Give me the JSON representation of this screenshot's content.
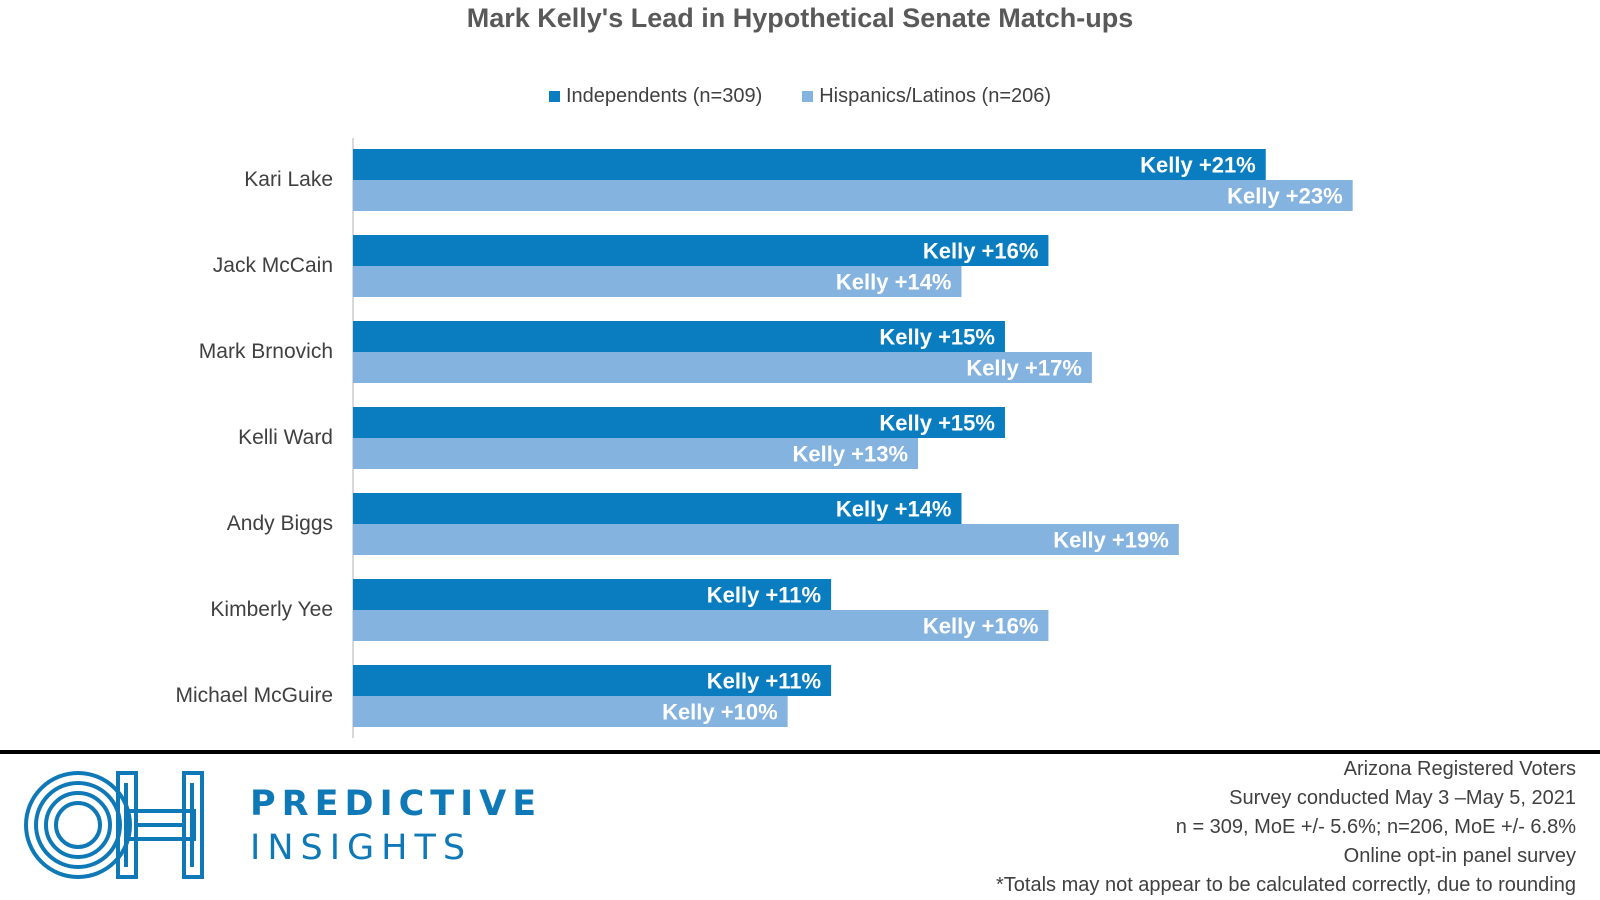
{
  "chart_data": {
    "type": "bar",
    "orientation": "horizontal",
    "title": "Mark Kelly's Lead in Hypothetical Senate Match-ups",
    "categories": [
      "Kari Lake",
      "Jack McCain",
      "Mark Brnovich",
      "Kelli Ward",
      "Andy Biggs",
      "Kimberly Yee",
      "Michael McGuire"
    ],
    "series": [
      {
        "name": "Independents (n=309)",
        "color": "#0a7dc1",
        "values": [
          21,
          16,
          15,
          15,
          14,
          11,
          11
        ],
        "labels": [
          "Kelly +21%",
          "Kelly +16%",
          "Kelly +15%",
          "Kelly +15%",
          "Kelly +14%",
          "Kelly +11%",
          "Kelly +11%"
        ]
      },
      {
        "name": "Hispanics/Latinos (n=206)",
        "color": "#85b3e0",
        "values": [
          23,
          14,
          17,
          13,
          19,
          16,
          10
        ],
        "labels": [
          "Kelly +23%",
          "Kelly +14%",
          "Kelly +17%",
          "Kelly +13%",
          "Kelly +19%",
          "Kelly +16%",
          "Kelly +10%"
        ]
      }
    ],
    "xlim": [
      0,
      28
    ],
    "grid": false,
    "legend_position": "top"
  },
  "branding": {
    "line1": "PREDICTIVE",
    "line2": "INSIGHTS",
    "logo_name": "oh-logo",
    "color": "#0f79b7"
  },
  "notes": [
    "Arizona Registered Voters",
    "Survey conducted May 3 –May 5, 2021",
    "n = 309, MoE +/- 5.6%;  n=206, MoE +/- 6.8%",
    "Online opt-in panel survey",
    "*Totals may not appear to be calculated correctly, due to rounding"
  ]
}
